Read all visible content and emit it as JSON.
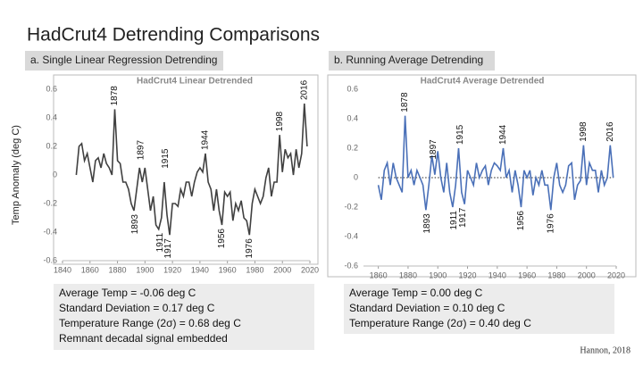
{
  "title": "HadCrut4 Detrending Comparisons",
  "panels": [
    {
      "label": "a. Single Linear Regression Detrending",
      "stats": [
        "Average Temp = -0.06 deg C",
        "Standard Deviation = 0.17 deg C",
        "Temperature Range (2σ) = 0.68 deg C",
        "Remnant decadal signal embedded"
      ]
    },
    {
      "label": "b. Running Average Detrending",
      "stats": [
        "Average Temp = 0.00 deg C",
        "Standard Deviation = 0.10 deg C",
        "Temperature Range (2σ) = 0.40 deg C"
      ]
    }
  ],
  "credit": "Hannon, 2018",
  "chart_data": [
    {
      "type": "line",
      "title": "HadCrut4 Linear Detrended",
      "y_label": "Temp Anomaly (deg C)",
      "color": "#404040",
      "x": [
        1850,
        1852,
        1854,
        1856,
        1858,
        1860,
        1862,
        1864,
        1866,
        1868,
        1870,
        1872,
        1874,
        1876,
        1878,
        1880,
        1882,
        1884,
        1886,
        1888,
        1890,
        1892,
        1894,
        1896,
        1898,
        1900,
        1902,
        1904,
        1906,
        1908,
        1910,
        1912,
        1914,
        1916,
        1918,
        1920,
        1922,
        1924,
        1926,
        1928,
        1930,
        1932,
        1934,
        1936,
        1938,
        1940,
        1942,
        1944,
        1946,
        1948,
        1950,
        1952,
        1954,
        1956,
        1958,
        1960,
        1962,
        1964,
        1966,
        1968,
        1970,
        1972,
        1974,
        1976,
        1978,
        1980,
        1982,
        1984,
        1986,
        1988,
        1990,
        1992,
        1994,
        1996,
        1998,
        2000,
        2002,
        2004,
        2006,
        2008,
        2010,
        2012,
        2014,
        2016,
        2018
      ],
      "values": [
        0.0,
        0.2,
        0.22,
        0.1,
        0.15,
        0.05,
        -0.05,
        0.1,
        0.12,
        0.05,
        0.15,
        0.08,
        0.05,
        0.0,
        0.46,
        0.1,
        0.08,
        -0.05,
        -0.05,
        -0.1,
        -0.2,
        -0.25,
        -0.1,
        0.05,
        -0.05,
        0.05,
        -0.1,
        -0.25,
        -0.15,
        -0.35,
        -0.38,
        -0.3,
        -0.05,
        -0.28,
        -0.42,
        -0.2,
        -0.2,
        -0.22,
        -0.1,
        -0.15,
        -0.05,
        -0.05,
        -0.15,
        -0.05,
        0.02,
        0.05,
        0.02,
        0.15,
        -0.05,
        -0.1,
        -0.25,
        -0.1,
        -0.25,
        -0.35,
        -0.12,
        -0.15,
        -0.12,
        -0.32,
        -0.2,
        -0.25,
        -0.18,
        -0.3,
        -0.32,
        -0.42,
        -0.2,
        -0.1,
        -0.15,
        -0.2,
        -0.15,
        -0.02,
        0.05,
        -0.15,
        -0.05,
        -0.05,
        0.28,
        0.02,
        0.18,
        0.12,
        0.15,
        0.0,
        0.18,
        0.05,
        0.15,
        0.5,
        0.2
      ],
      "xlim": [
        1840,
        2020
      ],
      "xticks": [
        1840,
        1860,
        1880,
        1900,
        1920,
        1940,
        1960,
        1980,
        2000,
        2020
      ],
      "ylim": [
        -0.6,
        0.6
      ],
      "yticks": [
        -0.6,
        -0.4,
        -0.2,
        0,
        0.2,
        0.4,
        0.6
      ],
      "zero_line": false,
      "annotations": [
        {
          "label": "1878",
          "x": 1878,
          "y": 0.46
        },
        {
          "label": "1897",
          "x": 1897,
          "y": 0.08
        },
        {
          "label": "1915",
          "x": 1915,
          "y": 0.02
        },
        {
          "label": "1944",
          "x": 1944,
          "y": 0.15
        },
        {
          "label": "1998",
          "x": 1998,
          "y": 0.28
        },
        {
          "label": "2016",
          "x": 2016,
          "y": 0.5
        },
        {
          "label": "1893",
          "x": 1893,
          "y": -0.25
        },
        {
          "label": "1911",
          "x": 1911,
          "y": -0.38
        },
        {
          "label": "1917",
          "x": 1917,
          "y": -0.42
        },
        {
          "label": "1956",
          "x": 1956,
          "y": -0.35
        },
        {
          "label": "1976",
          "x": 1976,
          "y": -0.42
        }
      ]
    },
    {
      "type": "line",
      "title": "HadCrut4 Average Detrended",
      "color": "#4a70b8",
      "x": [
        1860,
        1862,
        1864,
        1866,
        1868,
        1870,
        1872,
        1874,
        1876,
        1878,
        1880,
        1882,
        1884,
        1886,
        1888,
        1890,
        1892,
        1894,
        1896,
        1898,
        1900,
        1902,
        1904,
        1906,
        1908,
        1910,
        1912,
        1914,
        1916,
        1918,
        1920,
        1922,
        1924,
        1926,
        1928,
        1930,
        1932,
        1934,
        1936,
        1938,
        1940,
        1942,
        1944,
        1946,
        1948,
        1950,
        1952,
        1954,
        1956,
        1958,
        1960,
        1962,
        1964,
        1966,
        1968,
        1970,
        1972,
        1974,
        1976,
        1978,
        1980,
        1982,
        1984,
        1986,
        1988,
        1990,
        1992,
        1994,
        1996,
        1998,
        2000,
        2002,
        2004,
        2006,
        2008,
        2010,
        2012,
        2014,
        2016,
        2018
      ],
      "values": [
        -0.05,
        -0.15,
        0.05,
        0.1,
        -0.05,
        0.1,
        0.0,
        -0.05,
        -0.1,
        0.42,
        0.0,
        0.05,
        -0.05,
        0.05,
        0.0,
        -0.05,
        -0.22,
        -0.05,
        0.15,
        0.02,
        0.18,
        0.0,
        -0.1,
        0.1,
        -0.1,
        -0.2,
        -0.05,
        0.2,
        -0.1,
        -0.18,
        0.05,
        0.0,
        -0.05,
        0.1,
        0.0,
        0.05,
        0.08,
        -0.05,
        0.05,
        0.1,
        0.08,
        0.05,
        0.2,
        0.0,
        0.05,
        -0.1,
        0.05,
        -0.05,
        -0.2,
        0.05,
        0.0,
        0.05,
        -0.12,
        0.0,
        -0.05,
        0.05,
        -0.05,
        -0.05,
        -0.22,
        0.0,
        0.1,
        -0.05,
        -0.1,
        -0.05,
        0.08,
        0.1,
        -0.15,
        -0.05,
        -0.02,
        0.22,
        -0.05,
        0.1,
        0.05,
        0.05,
        -0.1,
        0.05,
        -0.05,
        0.0,
        0.22,
        0.0
      ],
      "xlim": [
        1850,
        2020
      ],
      "xticks": [
        1860,
        1880,
        1900,
        1920,
        1940,
        1960,
        1980,
        2000,
        2020
      ],
      "ylim": [
        -0.6,
        0.6
      ],
      "yticks": [
        -0.6,
        -0.4,
        -0.2,
        0,
        0.2,
        0.4,
        0.6
      ],
      "zero_line": true,
      "annotations": [
        {
          "label": "1878",
          "x": 1878,
          "y": 0.42
        },
        {
          "label": "1897",
          "x": 1897,
          "y": 0.1
        },
        {
          "label": "1915",
          "x": 1915,
          "y": 0.2
        },
        {
          "label": "1944",
          "x": 1944,
          "y": 0.2
        },
        {
          "label": "1998",
          "x": 1998,
          "y": 0.22
        },
        {
          "label": "2016",
          "x": 2016,
          "y": 0.22
        },
        {
          "label": "1893",
          "x": 1893,
          "y": -0.22
        },
        {
          "label": "1911",
          "x": 1911,
          "y": -0.2
        },
        {
          "label": "1917",
          "x": 1917,
          "y": -0.18
        },
        {
          "label": "1956",
          "x": 1956,
          "y": -0.2
        },
        {
          "label": "1976",
          "x": 1976,
          "y": -0.22
        }
      ]
    }
  ]
}
